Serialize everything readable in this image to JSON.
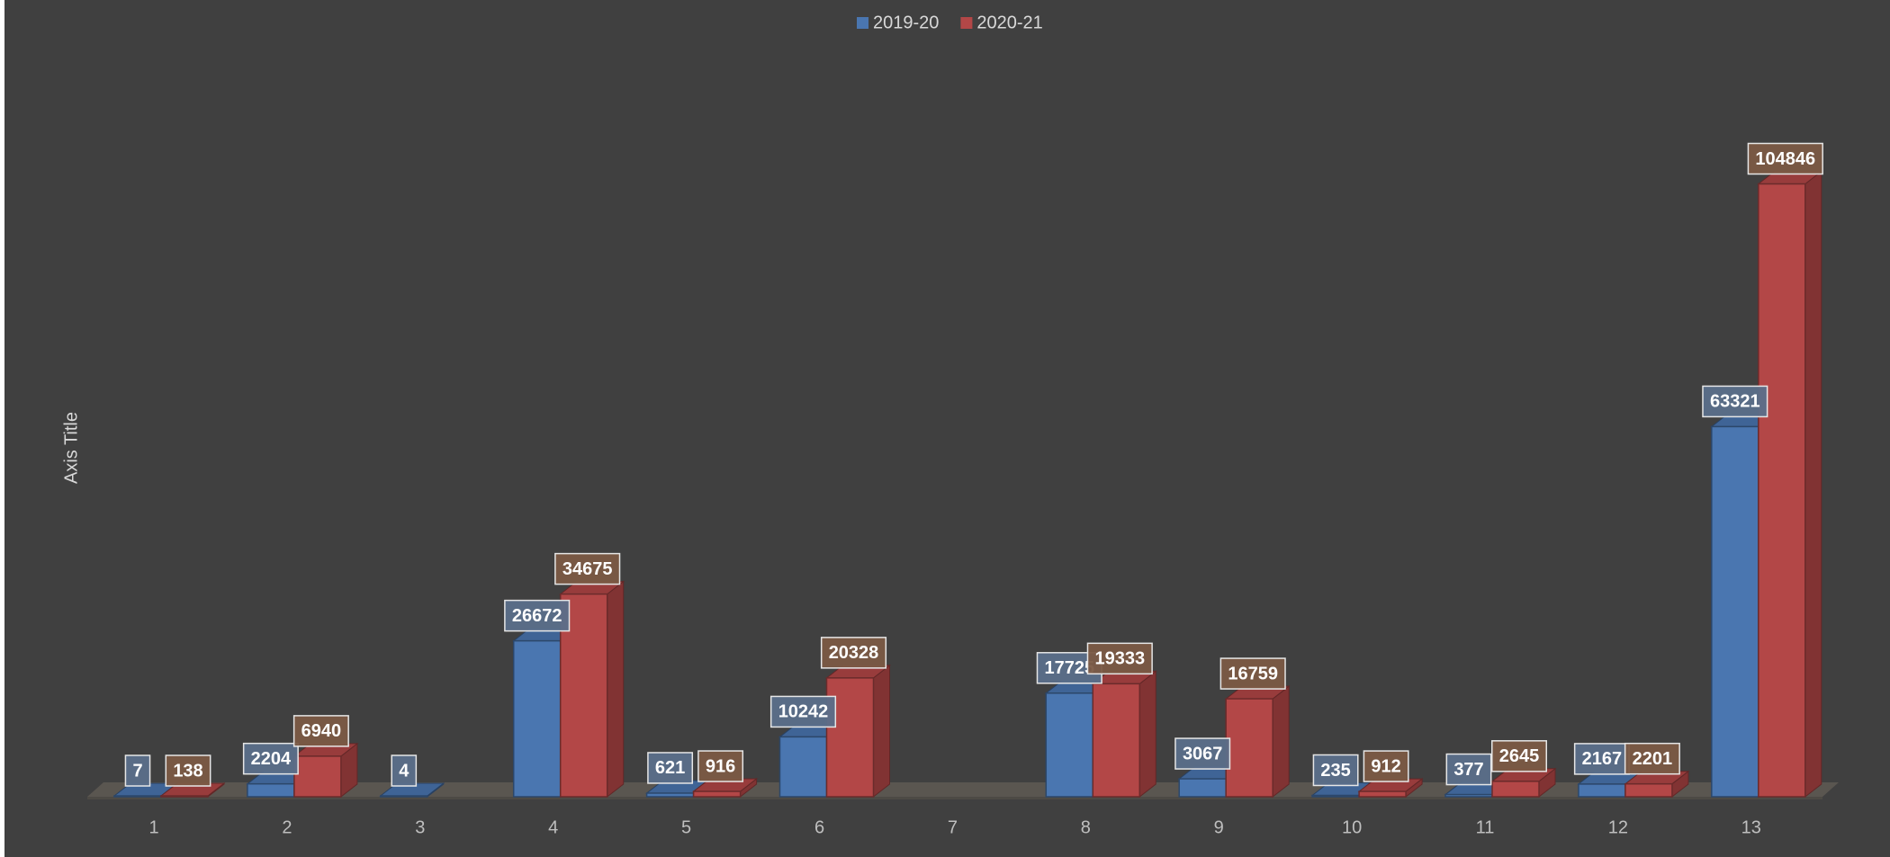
{
  "chart_data": {
    "type": "bar3d",
    "categories": [
      "1",
      "2",
      "3",
      "4",
      "5",
      "6",
      "7",
      "8",
      "9",
      "10",
      "11",
      "12",
      "13"
    ],
    "series": [
      {
        "name": "2019-20",
        "color": "#4a76b0",
        "values": [
          7,
          2204,
          4,
          26672,
          621,
          10242,
          null,
          17725,
          3067,
          235,
          377,
          2167,
          63321
        ]
      },
      {
        "name": "2020-21",
        "color": "#b34747",
        "values": [
          138,
          6940,
          null,
          34675,
          916,
          20328,
          null,
          19333,
          16759,
          912,
          2645,
          2201,
          104846
        ]
      }
    ],
    "y_axis_label": "Axis Title",
    "ylim": [
      0,
      120000
    ],
    "legend": "top"
  }
}
